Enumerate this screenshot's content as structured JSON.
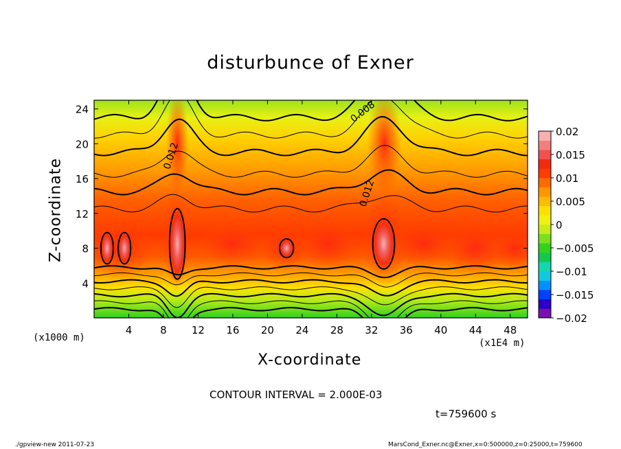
{
  "footer": {
    "left": "./gpview-new   2011-07-23",
    "right": "MarsCond_Exner.nc@Exner,x=0:500000,z=0:25000,t=759600"
  },
  "chart_data": {
    "type": "heatmap",
    "title": "disturbunce of Exner",
    "xlabel": "X-coordinate",
    "ylabel": "Z-coordinate",
    "x_unit_left": "(x1000 m)",
    "x_unit_right": "(x1E4 m)",
    "xlim": [
      0,
      50
    ],
    "ylim": [
      0,
      25
    ],
    "x_ticks": [
      4,
      8,
      12,
      16,
      20,
      24,
      28,
      32,
      36,
      40,
      44,
      48
    ],
    "y_ticks": [
      4,
      8,
      12,
      16,
      20,
      24
    ],
    "colorbar": {
      "range": [
        -0.02,
        0.02
      ],
      "tick_values": [
        0.02,
        0.015,
        0.01,
        0.005,
        0,
        -0.005,
        -0.01,
        -0.015,
        -0.02
      ],
      "tick_labels": [
        "0.02",
        "0.015",
        "0.01",
        "0.005",
        "0",
        "−0.005",
        "−0.01",
        "−0.015",
        "−0.02"
      ],
      "colors": [
        "#7a0fb0",
        "#2a00c8",
        "#0040ff",
        "#0090ff",
        "#10c8e0",
        "#14d7b0",
        "#12c850",
        "#33d21b",
        "#7ae01d",
        "#c8ec18",
        "#f0f012",
        "#ffe000",
        "#ffbb00",
        "#ff9600",
        "#ff6a00",
        "#ff3c00",
        "#f42a10",
        "#f05050",
        "#f08080",
        "#f8b0b0"
      ]
    },
    "contour_interval": "CONTOUR INTERVAL = 2.000E-03",
    "contour_labels": [
      {
        "text": "0.012",
        "x": 9.2,
        "z": 18.5,
        "angle": -72
      },
      {
        "text": "0.012",
        "x": 31.8,
        "z": 14.2,
        "angle": -72
      },
      {
        "text": "0.008",
        "x": 31.2,
        "z": 23.4,
        "angle": -38
      }
    ],
    "time_label": "t=759600 s"
  }
}
